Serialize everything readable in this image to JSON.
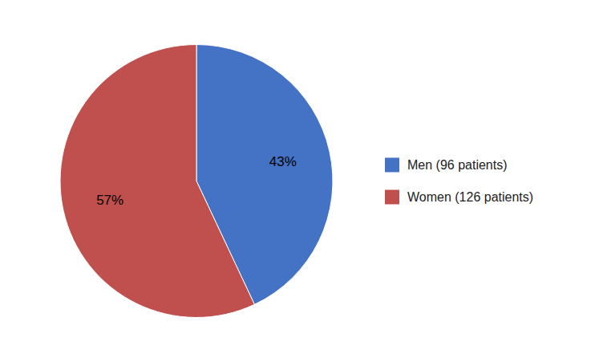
{
  "chart_data": {
    "type": "pie",
    "categories": [
      "Men (96 patients)",
      "Women (126 patients)"
    ],
    "values": [
      43,
      57
    ],
    "value_labels": [
      "43%",
      "57%"
    ],
    "colors": [
      "#4472C4",
      "#C0504D"
    ],
    "data_labels": true,
    "legend": "right"
  }
}
